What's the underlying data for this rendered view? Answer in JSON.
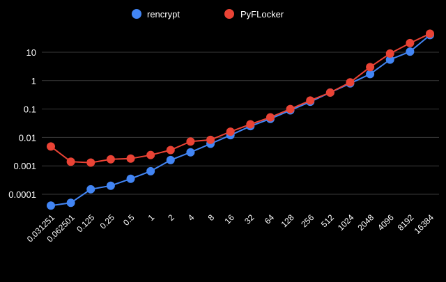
{
  "chart_data": {
    "type": "line",
    "title": "",
    "xlabel": "",
    "ylabel": "",
    "yscale": "log",
    "ylim": [
      4e-05,
      50
    ],
    "grid": true,
    "legend_position": "top",
    "background_color": "#000000",
    "grid_color": "#3a3a3a",
    "y_ticks": [
      "0.0001",
      "0.001",
      "0.01",
      "0.1",
      "1",
      "10"
    ],
    "categories": [
      "0.031251",
      "0.062501",
      "0.125",
      "0.25",
      "0.5",
      "1",
      "2",
      "4",
      "8",
      "16",
      "32",
      "64",
      "128",
      "256",
      "512",
      "1024",
      "2048",
      "4096",
      "8192",
      "16384"
    ],
    "series": [
      {
        "name": "rencrypt",
        "color": "#4285f4",
        "values": [
          4e-05,
          5e-05,
          0.00015,
          0.0002,
          0.00035,
          0.00065,
          0.0016,
          0.003,
          0.006,
          0.012,
          0.025,
          0.045,
          0.09,
          0.18,
          0.38,
          0.8,
          1.7,
          5.5,
          10.5,
          40
        ]
      },
      {
        "name": "PyFLocker",
        "color": "#ea4335",
        "values": [
          0.0048,
          0.0014,
          0.0013,
          0.0017,
          0.0018,
          0.0024,
          0.0036,
          0.0072,
          0.0082,
          0.016,
          0.029,
          0.051,
          0.1,
          0.2,
          0.38,
          0.87,
          3.0,
          9.0,
          21,
          45
        ]
      }
    ]
  }
}
